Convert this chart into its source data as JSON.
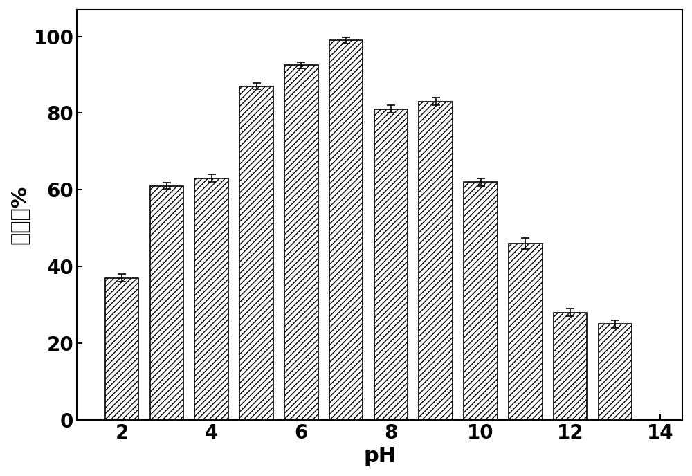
{
  "ph_values": [
    2,
    3,
    4,
    5,
    6,
    7,
    8,
    9,
    10,
    11,
    12,
    13
  ],
  "bar_heights": [
    37.0,
    61.0,
    63.0,
    87.0,
    92.5,
    99.0,
    81.0,
    83.0,
    62.0,
    46.0,
    28.0,
    25.0
  ],
  "error_values": [
    1.0,
    0.8,
    1.0,
    0.8,
    0.8,
    0.8,
    1.0,
    1.0,
    1.0,
    1.5,
    1.0,
    1.0
  ],
  "bar_color": "#ffffff",
  "bar_edgecolor": "#000000",
  "hatch": "////",
  "xlabel": "pH",
  "ylabel": "抑制率%",
  "xlim": [
    1.0,
    14.5
  ],
  "ylim": [
    0,
    107
  ],
  "yticks": [
    0,
    20,
    40,
    60,
    80,
    100
  ],
  "xticks": [
    2,
    4,
    6,
    8,
    10,
    12,
    14
  ],
  "bar_width": 0.75,
  "xlabel_fontsize": 22,
  "ylabel_fontsize": 22,
  "tick_fontsize": 20,
  "figure_width": 10.0,
  "figure_height": 6.88,
  "dpi": 100
}
